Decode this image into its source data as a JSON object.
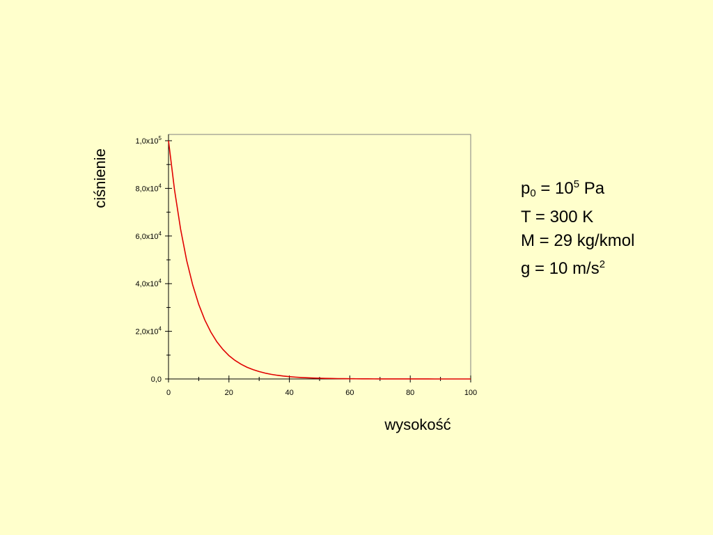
{
  "chart_data": {
    "type": "line",
    "xlabel": "wysokość",
    "ylabel": "ciśnienie",
    "xlim": [
      0,
      100
    ],
    "ylim": [
      0,
      100000
    ],
    "x_ticks": [
      0,
      20,
      40,
      60,
      80,
      100
    ],
    "x_tick_labels": [
      "0",
      "20",
      "40",
      "60",
      "80",
      "100"
    ],
    "x_minor_step": 10,
    "y_ticks": [
      0,
      20000,
      40000,
      60000,
      80000,
      100000
    ],
    "y_tick_labels": [
      {
        "mantissa": "0,0",
        "exp": ""
      },
      {
        "mantissa": "2,0x10",
        "exp": "4"
      },
      {
        "mantissa": "4,0x10",
        "exp": "4"
      },
      {
        "mantissa": "6,0x10",
        "exp": "4"
      },
      {
        "mantissa": "8,0x10",
        "exp": "4"
      },
      {
        "mantissa": "1,0x10",
        "exp": "5"
      }
    ],
    "y_minor_step": 10000,
    "grid": false,
    "series": [
      {
        "color": "#E00000",
        "x": [
          0,
          2,
          4,
          6,
          8,
          10,
          12,
          14,
          16,
          18,
          20,
          22,
          24,
          26,
          28,
          30,
          32,
          34,
          36,
          38,
          40,
          42,
          44,
          46,
          48,
          50,
          52,
          54,
          56,
          58,
          60,
          62,
          64,
          66,
          68,
          70,
          72,
          74,
          76,
          78,
          80,
          82,
          84,
          86,
          88,
          90,
          92,
          94,
          96,
          98,
          100
        ],
        "y": [
          100000,
          79300,
          62900,
          49800,
          39500,
          31300,
          24800,
          19700,
          15600,
          12400,
          9800,
          7800,
          6200,
          4900,
          3900,
          3100,
          2450,
          1940,
          1540,
          1220,
          970,
          770,
          610,
          480,
          380,
          300,
          240,
          190,
          150,
          120,
          95,
          75,
          60,
          47,
          37,
          30,
          24,
          19,
          15,
          12,
          9,
          7,
          6,
          5,
          4,
          3,
          2,
          2,
          1,
          1,
          1
        ]
      }
    ]
  },
  "params": {
    "p_symbol": "p",
    "p_sub": "0",
    "p_eq": " = 10",
    "p_exp": "5",
    "p_unit": " Pa",
    "t_line": "T = 300 K",
    "m_line": "M = 29 kg/kmol",
    "g_text": "g = 10 m/s",
    "g_exp": "2"
  }
}
